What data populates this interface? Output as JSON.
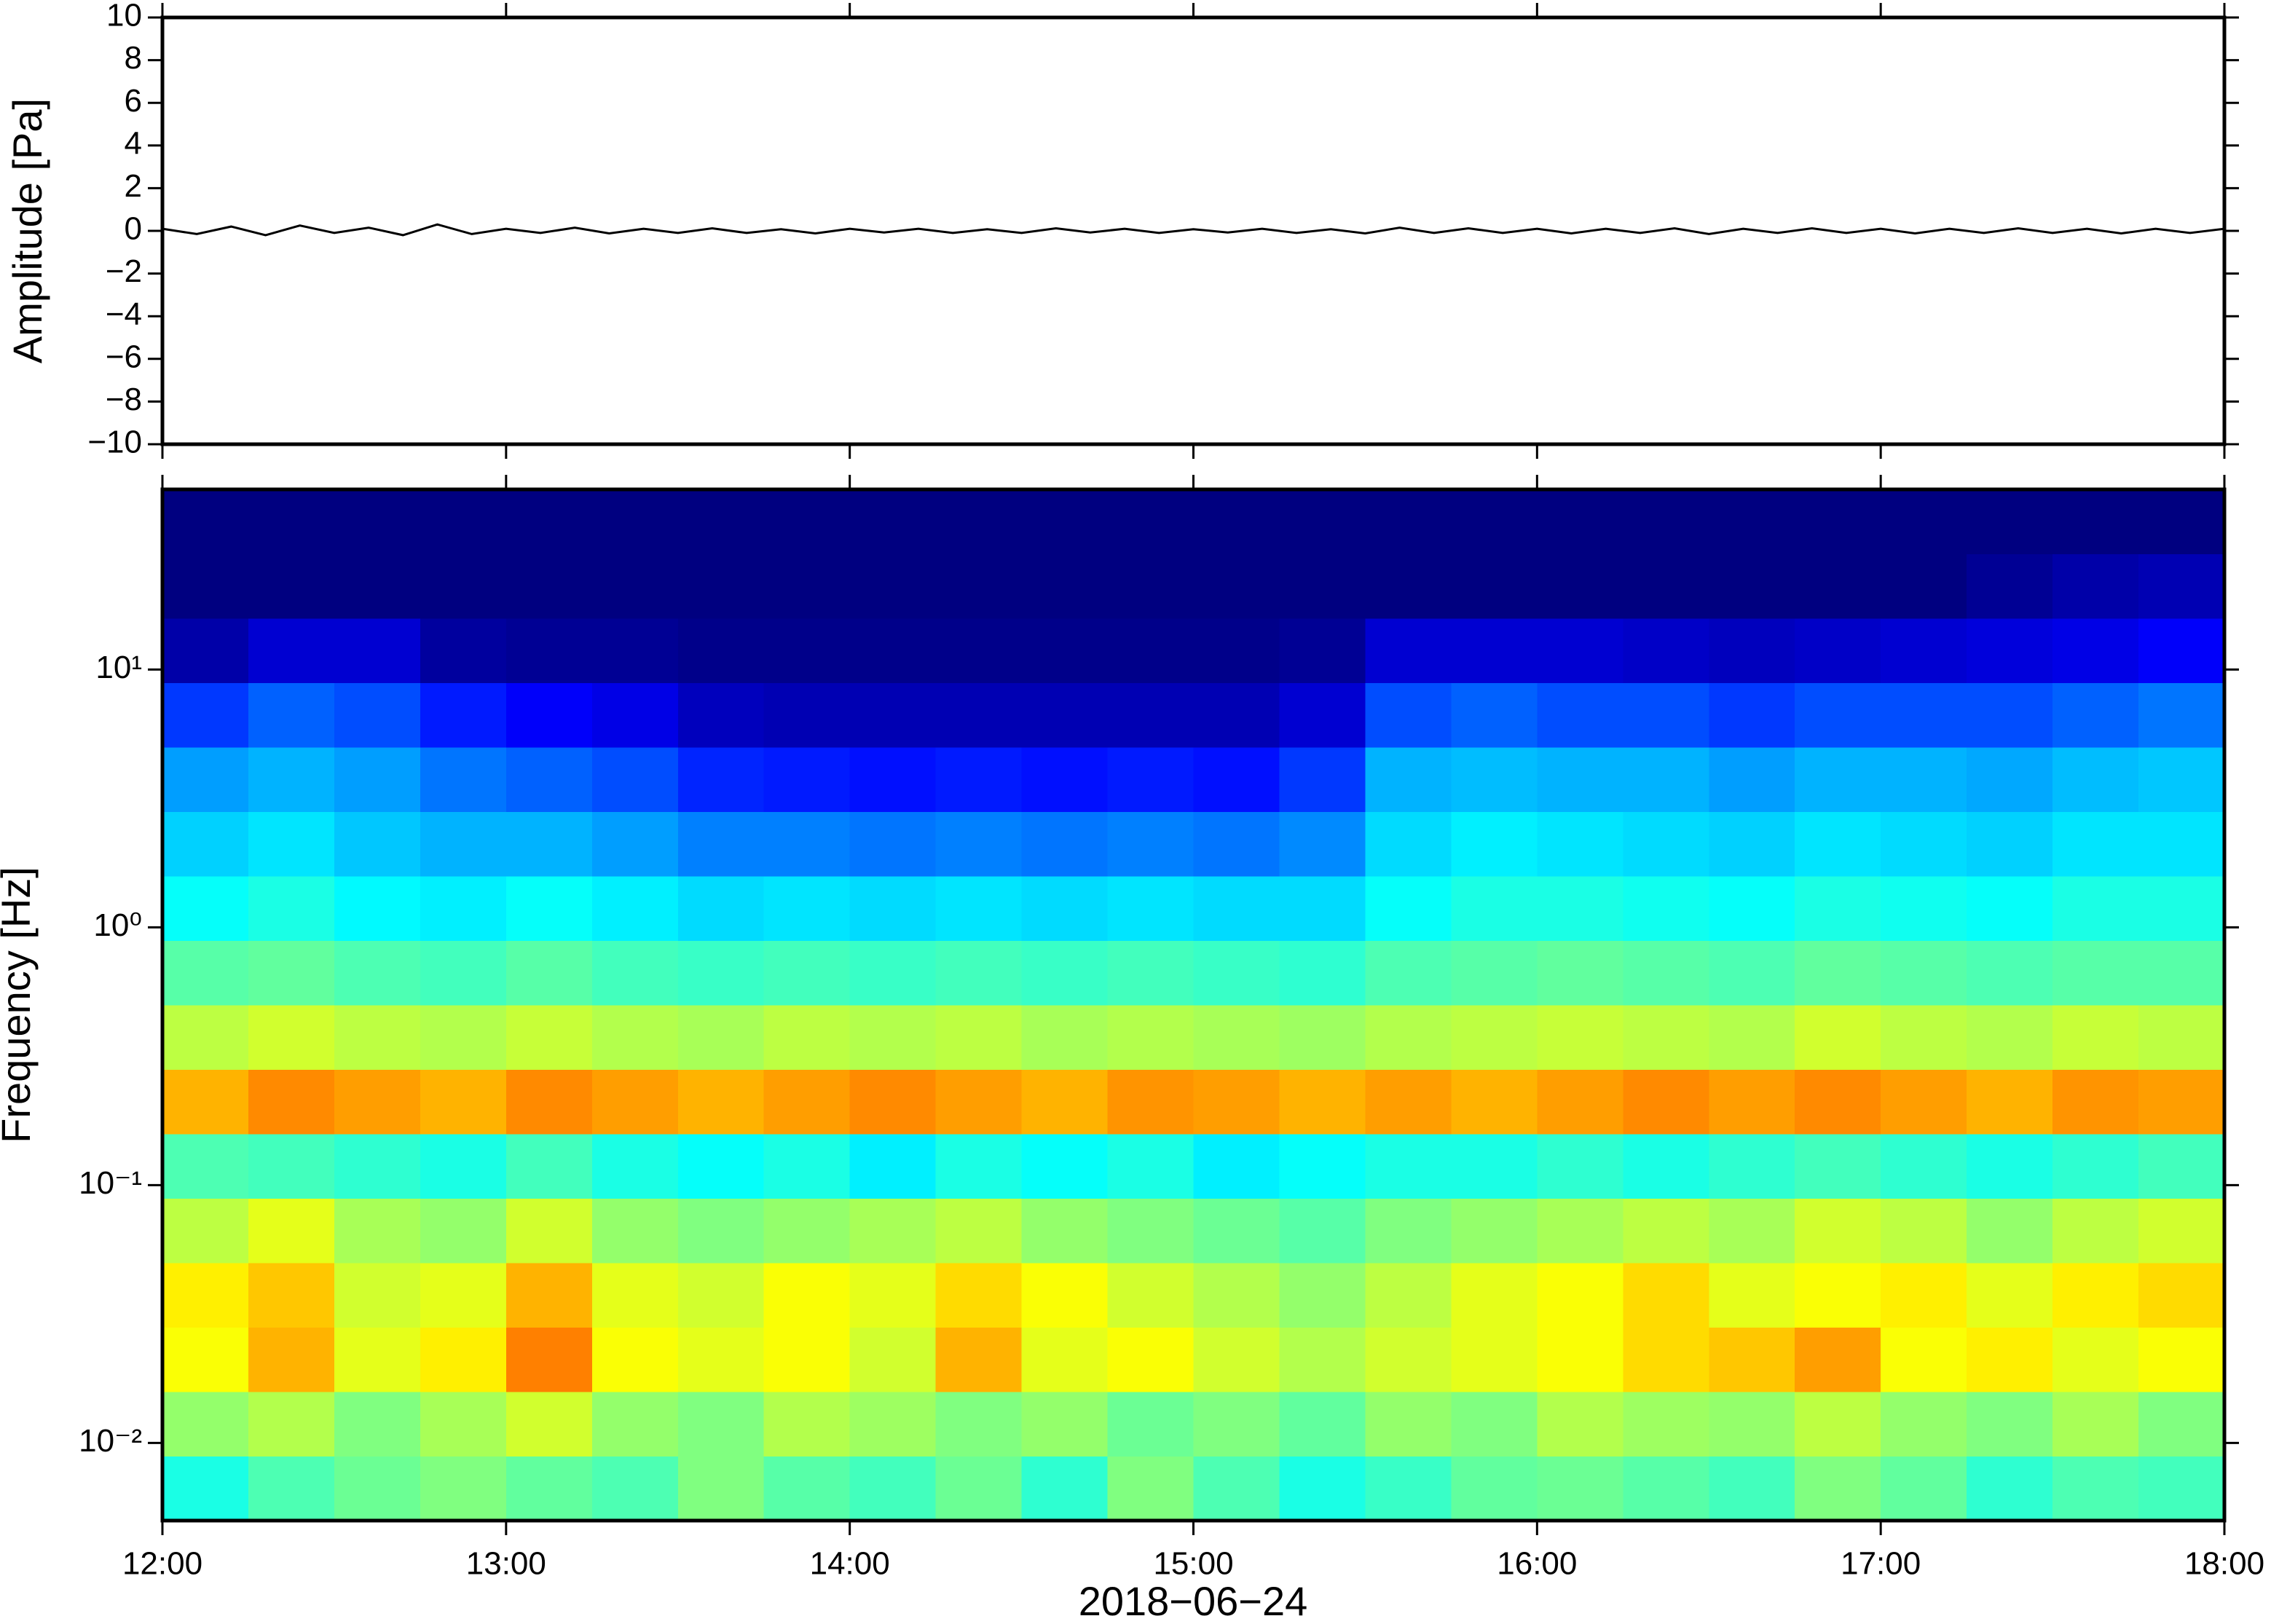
{
  "chart_data": [
    {
      "type": "line",
      "ylabel": "Amplitude [Pa]",
      "xlim": [
        12,
        18
      ],
      "xticks": [
        12,
        13,
        14,
        15,
        16,
        17,
        18
      ],
      "ylim": [
        -10,
        10
      ],
      "yticks": [
        {
          "value": -10,
          "label": "−10"
        },
        {
          "value": -8,
          "label": "−8"
        },
        {
          "value": -6,
          "label": "−6"
        },
        {
          "value": -4,
          "label": "−4"
        },
        {
          "value": -2,
          "label": "−2"
        },
        0,
        2,
        4,
        6,
        8,
        10
      ],
      "series": [
        {
          "color": "#000000",
          "x": [
            12.0,
            12.1,
            12.2,
            12.3,
            12.4,
            12.5,
            12.6,
            12.7,
            12.8,
            12.9,
            13.0,
            13.1,
            13.2,
            13.3,
            13.4,
            13.5,
            13.6,
            13.7,
            13.8,
            13.9,
            14.0,
            14.1,
            14.2,
            14.3,
            14.4,
            14.5,
            14.6,
            14.7,
            14.8,
            14.9,
            15.0,
            15.1,
            15.2,
            15.3,
            15.4,
            15.5,
            15.6,
            15.7,
            15.8,
            15.9,
            16.0,
            16.1,
            16.2,
            16.3,
            16.4,
            16.5,
            16.6,
            16.7,
            16.8,
            16.9,
            17.0,
            17.1,
            17.2,
            17.3,
            17.4,
            17.5,
            17.6,
            17.7,
            17.8,
            17.9,
            18.0
          ],
          "values": [
            0.1,
            -0.15,
            0.2,
            -0.2,
            0.25,
            -0.1,
            0.15,
            -0.2,
            0.3,
            -0.15,
            0.1,
            -0.1,
            0.15,
            -0.12,
            0.1,
            -0.1,
            0.12,
            -0.1,
            0.08,
            -0.12,
            0.1,
            -0.08,
            0.1,
            -0.1,
            0.08,
            -0.1,
            0.12,
            -0.08,
            0.1,
            -0.1,
            0.08,
            -0.08,
            0.1,
            -0.1,
            0.08,
            -0.12,
            0.15,
            -0.1,
            0.12,
            -0.1,
            0.1,
            -0.12,
            0.1,
            -0.1,
            0.12,
            -0.15,
            0.1,
            -0.1,
            0.12,
            -0.1,
            0.1,
            -0.12,
            0.1,
            -0.1,
            0.12,
            -0.1,
            0.1,
            -0.12,
            0.1,
            -0.1,
            0.1
          ]
        }
      ]
    },
    {
      "type": "heatmap",
      "ylabel": "Frequency [Hz]",
      "xlabel": "2018−06−24",
      "colormap": "jet",
      "log_y": true,
      "xlim": [
        12,
        18
      ],
      "xticks": [
        {
          "value": 12,
          "label": "12:00"
        },
        {
          "value": 13,
          "label": "13:00"
        },
        {
          "value": 14,
          "label": "14:00"
        },
        {
          "value": 15,
          "label": "15:00"
        },
        {
          "value": 16,
          "label": "16:00"
        },
        {
          "value": 17,
          "label": "17:00"
        },
        {
          "value": 18,
          "label": "18:00"
        }
      ],
      "ylim": [
        0.005,
        50
      ],
      "yticks": [
        {
          "value": 0.01,
          "label": "10⁻²"
        },
        {
          "value": 0.1,
          "label": "10⁻¹"
        },
        {
          "value": 1,
          "label": "10⁰"
        },
        {
          "value": 10,
          "label": "10¹"
        }
      ],
      "xbins": [
        12,
        12.25,
        12.5,
        12.75,
        13,
        13.25,
        13.5,
        13.75,
        14,
        14.25,
        14.5,
        14.75,
        15,
        15.25,
        15.5,
        15.75,
        16,
        16.25,
        16.5,
        16.75,
        17,
        17.25,
        17.5,
        17.75,
        18
      ],
      "ybins": [
        0.005,
        0.0089,
        0.0158,
        0.0281,
        0.05,
        0.089,
        0.158,
        0.281,
        0.5,
        0.889,
        1.58,
        2.81,
        5,
        8.89,
        15.8,
        28.1,
        50
      ],
      "values": [
        [
          0.4,
          0.45,
          0.48,
          0.5,
          0.47,
          0.45,
          0.5,
          0.46,
          0.44,
          0.48,
          0.42,
          0.5,
          0.45,
          0.4,
          0.43,
          0.47,
          0.48,
          0.46,
          0.44,
          0.5,
          0.47,
          0.42,
          0.45,
          0.44
        ],
        [
          0.52,
          0.55,
          0.5,
          0.54,
          0.58,
          0.52,
          0.5,
          0.55,
          0.53,
          0.5,
          0.52,
          0.48,
          0.5,
          0.47,
          0.52,
          0.5,
          0.55,
          0.53,
          0.52,
          0.56,
          0.52,
          0.5,
          0.54,
          0.5
        ],
        [
          0.62,
          0.7,
          0.6,
          0.64,
          0.75,
          0.62,
          0.6,
          0.62,
          0.58,
          0.7,
          0.6,
          0.62,
          0.58,
          0.55,
          0.58,
          0.6,
          0.62,
          0.66,
          0.68,
          0.72,
          0.62,
          0.64,
          0.6,
          0.62
        ],
        [
          0.64,
          0.68,
          0.58,
          0.6,
          0.7,
          0.6,
          0.58,
          0.62,
          0.6,
          0.66,
          0.62,
          0.58,
          0.55,
          0.52,
          0.56,
          0.6,
          0.62,
          0.66,
          0.6,
          0.62,
          0.64,
          0.6,
          0.64,
          0.66
        ],
        [
          0.56,
          0.6,
          0.54,
          0.52,
          0.58,
          0.52,
          0.5,
          0.52,
          0.54,
          0.56,
          0.52,
          0.5,
          0.48,
          0.46,
          0.5,
          0.52,
          0.54,
          0.56,
          0.54,
          0.58,
          0.56,
          0.52,
          0.56,
          0.58
        ],
        [
          0.45,
          0.44,
          0.42,
          0.4,
          0.44,
          0.4,
          0.38,
          0.4,
          0.36,
          0.4,
          0.38,
          0.4,
          0.36,
          0.38,
          0.4,
          0.4,
          0.42,
          0.4,
          0.42,
          0.44,
          0.42,
          0.4,
          0.42,
          0.44
        ],
        [
          0.7,
          0.74,
          0.72,
          0.7,
          0.74,
          0.72,
          0.7,
          0.72,
          0.74,
          0.72,
          0.7,
          0.73,
          0.72,
          0.7,
          0.72,
          0.7,
          0.72,
          0.74,
          0.72,
          0.74,
          0.72,
          0.7,
          0.73,
          0.72
        ],
        [
          0.56,
          0.58,
          0.56,
          0.55,
          0.57,
          0.55,
          0.54,
          0.56,
          0.55,
          0.56,
          0.54,
          0.55,
          0.54,
          0.53,
          0.55,
          0.56,
          0.57,
          0.56,
          0.55,
          0.58,
          0.56,
          0.55,
          0.57,
          0.56
        ],
        [
          0.46,
          0.47,
          0.45,
          0.44,
          0.46,
          0.44,
          0.43,
          0.44,
          0.43,
          0.44,
          0.43,
          0.44,
          0.43,
          0.42,
          0.45,
          0.46,
          0.47,
          0.46,
          0.45,
          0.47,
          0.46,
          0.45,
          0.46,
          0.46
        ],
        [
          0.38,
          0.4,
          0.37,
          0.36,
          0.38,
          0.36,
          0.34,
          0.35,
          0.34,
          0.35,
          0.34,
          0.35,
          0.34,
          0.34,
          0.38,
          0.4,
          0.4,
          0.39,
          0.38,
          0.4,
          0.39,
          0.38,
          0.4,
          0.4
        ],
        [
          0.33,
          0.35,
          0.32,
          0.3,
          0.3,
          0.28,
          0.25,
          0.25,
          0.24,
          0.25,
          0.24,
          0.25,
          0.24,
          0.26,
          0.34,
          0.36,
          0.35,
          0.34,
          0.33,
          0.35,
          0.34,
          0.33,
          0.35,
          0.35
        ],
        [
          0.28,
          0.3,
          0.28,
          0.24,
          0.22,
          0.2,
          0.16,
          0.15,
          0.14,
          0.15,
          0.14,
          0.15,
          0.14,
          0.18,
          0.3,
          0.31,
          0.3,
          0.3,
          0.28,
          0.3,
          0.3,
          0.29,
          0.31,
          0.32
        ],
        [
          0.18,
          0.22,
          0.2,
          0.15,
          0.12,
          0.1,
          0.06,
          0.05,
          0.05,
          0.05,
          0.05,
          0.05,
          0.05,
          0.08,
          0.2,
          0.22,
          0.2,
          0.2,
          0.18,
          0.2,
          0.2,
          0.2,
          0.22,
          0.24
        ],
        [
          0.04,
          0.08,
          0.08,
          0.03,
          0.02,
          0.02,
          0.01,
          0.01,
          0.01,
          0.01,
          0.01,
          0.01,
          0.01,
          0.02,
          0.08,
          0.08,
          0.08,
          0.07,
          0.06,
          0.07,
          0.08,
          0.09,
          0.1,
          0.12
        ],
        [
          0,
          0,
          0,
          0,
          0,
          0,
          0,
          0,
          0,
          0,
          0,
          0,
          0,
          0,
          0,
          0,
          0,
          0,
          0,
          0,
          0,
          0.02,
          0.04,
          0.05
        ],
        [
          0,
          0,
          0,
          0,
          0,
          0,
          0,
          0,
          0,
          0,
          0,
          0,
          0,
          0,
          0,
          0,
          0,
          0,
          0,
          0,
          0,
          0,
          0,
          0
        ]
      ]
    }
  ]
}
